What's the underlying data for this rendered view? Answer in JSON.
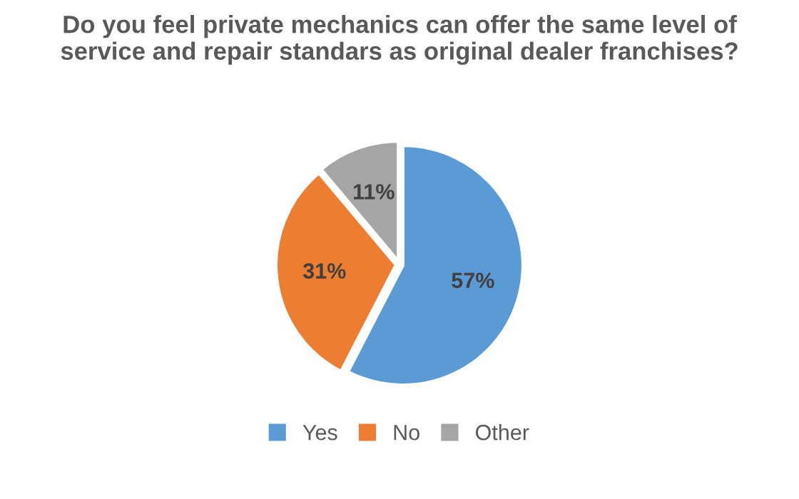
{
  "chart_data": {
    "type": "pie",
    "title": "Do you feel private mechanics can offer the same level of\nservice and repair standars as original dealer franchises?",
    "categories": [
      "Yes",
      "No",
      "Other"
    ],
    "values": [
      57,
      31,
      11
    ],
    "colors": [
      "#5b9bd5",
      "#ed7d31",
      "#a5a5a5"
    ],
    "value_labels": [
      "57%",
      "31%",
      "11%"
    ],
    "legend": "bottom"
  }
}
